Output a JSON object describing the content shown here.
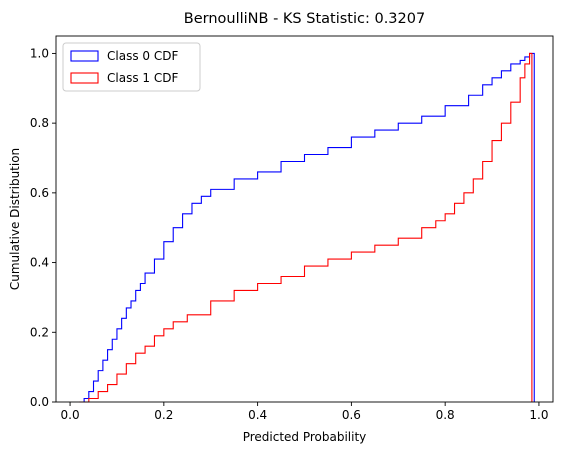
{
  "chart_data": {
    "type": "line",
    "title": "BernoulliNB - KS Statistic: 0.3207",
    "xlabel": "Predicted Probability",
    "ylabel": "Cumulative Distribution",
    "xlim": [
      -0.03,
      1.03
    ],
    "ylim": [
      0,
      1.05
    ],
    "xticks": [
      0.0,
      0.2,
      0.4,
      0.6,
      0.8,
      1.0
    ],
    "xtick_labels": [
      "0.0",
      "0.2",
      "0.4",
      "0.6",
      "0.8",
      "1.0"
    ],
    "yticks": [
      0.0,
      0.2,
      0.4,
      0.6,
      0.8,
      1.0
    ],
    "ytick_labels": [
      "0.0",
      "0.2",
      "0.4",
      "0.6",
      "0.8",
      "1.0"
    ],
    "grid": false,
    "legend_position": "top-left",
    "series": [
      {
        "name": "Class 0 CDF",
        "color": "#0000ff",
        "style": "step",
        "x": [
          0.02,
          0.03,
          0.04,
          0.05,
          0.06,
          0.07,
          0.08,
          0.09,
          0.1,
          0.11,
          0.12,
          0.13,
          0.14,
          0.15,
          0.16,
          0.18,
          0.2,
          0.22,
          0.24,
          0.26,
          0.28,
          0.3,
          0.35,
          0.4,
          0.45,
          0.5,
          0.55,
          0.6,
          0.65,
          0.7,
          0.75,
          0.8,
          0.85,
          0.88,
          0.9,
          0.92,
          0.94,
          0.96,
          0.97,
          0.98,
          0.99
        ],
        "y": [
          0.0,
          0.01,
          0.03,
          0.06,
          0.09,
          0.12,
          0.15,
          0.18,
          0.21,
          0.24,
          0.27,
          0.29,
          0.32,
          0.34,
          0.37,
          0.41,
          0.46,
          0.5,
          0.54,
          0.57,
          0.59,
          0.61,
          0.64,
          0.66,
          0.69,
          0.71,
          0.73,
          0.76,
          0.78,
          0.8,
          0.82,
          0.85,
          0.88,
          0.91,
          0.93,
          0.95,
          0.97,
          0.98,
          0.99,
          1.0,
          0.0
        ]
      },
      {
        "name": "Class 1 CDF",
        "color": "#ff0000",
        "style": "step",
        "x": [
          0.02,
          0.04,
          0.06,
          0.08,
          0.1,
          0.12,
          0.14,
          0.16,
          0.18,
          0.2,
          0.22,
          0.25,
          0.3,
          0.35,
          0.4,
          0.45,
          0.5,
          0.55,
          0.6,
          0.65,
          0.7,
          0.75,
          0.78,
          0.8,
          0.82,
          0.84,
          0.86,
          0.88,
          0.9,
          0.92,
          0.94,
          0.96,
          0.97,
          0.98,
          0.985
        ],
        "y": [
          0.0,
          0.01,
          0.03,
          0.05,
          0.08,
          0.11,
          0.14,
          0.16,
          0.19,
          0.21,
          0.23,
          0.25,
          0.29,
          0.32,
          0.34,
          0.36,
          0.39,
          0.41,
          0.43,
          0.45,
          0.47,
          0.5,
          0.52,
          0.54,
          0.57,
          0.6,
          0.64,
          0.69,
          0.75,
          0.8,
          0.86,
          0.93,
          0.97,
          1.0,
          0.0
        ]
      }
    ]
  }
}
